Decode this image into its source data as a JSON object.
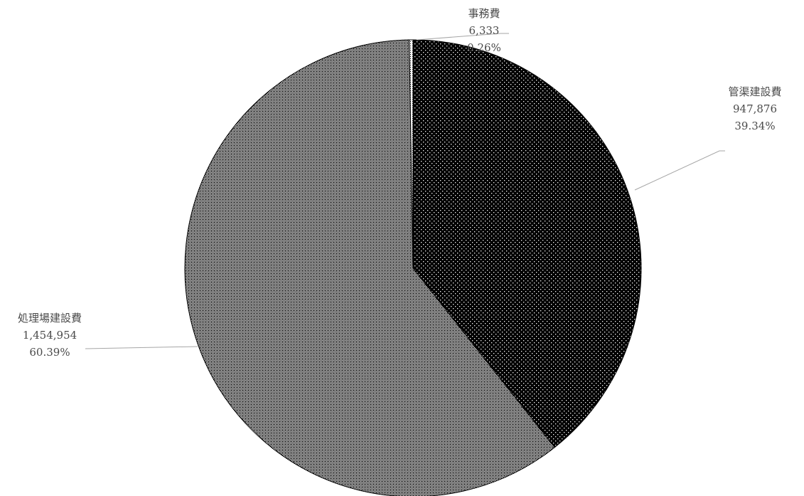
{
  "chart_data": {
    "type": "pie",
    "title": "",
    "start_angle_deg": 0,
    "direction": "clockwise",
    "slices": [
      {
        "name": "管渠建設費",
        "value": 947876,
        "value_label": "947,876",
        "percent_label": "39.34%",
        "fill_pattern": "white-dots-on-black"
      },
      {
        "name": "処理場建設費",
        "value": 1454954,
        "value_label": "1,454,954",
        "percent_label": "60.39%",
        "fill_pattern": "fine-checker"
      },
      {
        "name": "事務費",
        "value": 6333,
        "value_label": "6,333",
        "percent_label": "0.26%",
        "fill_pattern": "fine-dots-on-white"
      }
    ],
    "colors": {
      "slice_stroke": "#000000",
      "leader_line": "#a6a6a6",
      "label_text": "#4a4a4a",
      "dark": "#000000",
      "light": "#ffffff"
    }
  }
}
